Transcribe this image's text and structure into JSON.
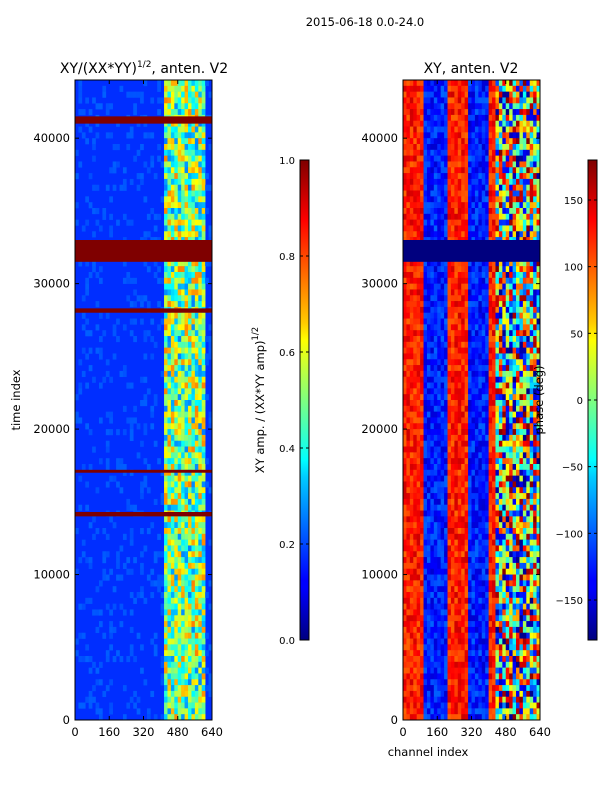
{
  "suptitle": "2015-06-18 0.0-24.0",
  "chart_data": [
    {
      "type": "heatmap",
      "title": "XY/(XX*YY)",
      "title_superscript": "1/2",
      "title_suffix": ", anten. V2",
      "xlabel": "",
      "ylabel": "time index",
      "xlim": [
        0,
        640
      ],
      "ylim": [
        0,
        44000
      ],
      "xticks": [
        0,
        160,
        320,
        480,
        640
      ],
      "yticks": [
        0,
        10000,
        20000,
        30000,
        40000
      ],
      "colorbar": {
        "label": "XY amp. / (XX*YY amp)",
        "label_superscript": "1/2",
        "min": 0.0,
        "max": 1.0,
        "ticks": [
          "0.0",
          "0.2",
          "0.4",
          "0.6",
          "0.8",
          "1.0"
        ]
      },
      "saturated_time_bands": [
        [
          31500,
          33000
        ],
        [
          41000,
          41500
        ],
        [
          14000,
          14300
        ],
        [
          17000,
          17200
        ],
        [
          28000,
          28300
        ]
      ],
      "bright_channel_range": [
        420,
        600
      ]
    },
    {
      "type": "heatmap",
      "title": "XY, anten. V2",
      "xlabel": "channel index",
      "ylabel": "",
      "xlim": [
        0,
        640
      ],
      "ylim": [
        0,
        44000
      ],
      "xticks": [
        0,
        160,
        320,
        480,
        640
      ],
      "yticks": [
        0,
        10000,
        20000,
        30000,
        40000
      ],
      "colorbar": {
        "label": "phase (deg)",
        "min": -180,
        "max": 180,
        "ticks": [
          "150",
          "100",
          "50",
          "0",
          "−50",
          "−100",
          "−150"
        ],
        "tick_values": [
          150,
          100,
          50,
          0,
          -50,
          -100,
          -150
        ]
      },
      "blank_time_band": [
        31500,
        33000
      ]
    }
  ]
}
